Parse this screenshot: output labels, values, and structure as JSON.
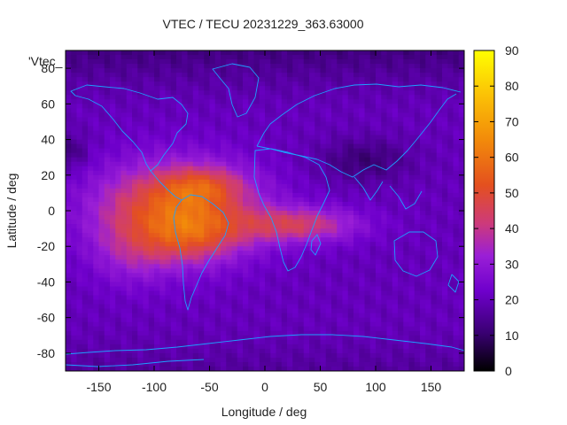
{
  "chart_data": {
    "type": "heatmap",
    "title": "VTEC / TECU 20231229_363.63000",
    "xlabel": "Longitude / deg",
    "ylabel": "Latitude / deg",
    "legend_entry": "'Vtec_",
    "xlim": [
      -180,
      180
    ],
    "ylim": [
      -90,
      90
    ],
    "x_ticks": [
      -150,
      -100,
      -50,
      0,
      50,
      100,
      150
    ],
    "y_ticks": [
      -80,
      -60,
      -40,
      -20,
      0,
      20,
      40,
      60,
      80
    ],
    "colorbar": {
      "range": [
        0,
        90
      ],
      "ticks": [
        0,
        10,
        20,
        30,
        40,
        50,
        60,
        70,
        80,
        90
      ],
      "colors": [
        "#000000",
        "#3a0073",
        "#6f00cc",
        "#9a1fd6",
        "#cd3a7b",
        "#e4501f",
        "#f28a0a",
        "#fbc106",
        "#ffff00"
      ]
    },
    "grid": false,
    "legend_position": "top-left",
    "grid_resolution": {
      "dlon": 5,
      "dlat": 2.5
    },
    "approx_features": {
      "background_vtec": 20,
      "polar_minimum_vtec": 10,
      "anomaly_crest_north": {
        "lon": -55,
        "lat": 14,
        "vtec": 66
      },
      "anomaly_crest_south": {
        "lon": -65,
        "lat": -15,
        "vtec": 60
      },
      "max_vtec": 68
    }
  }
}
